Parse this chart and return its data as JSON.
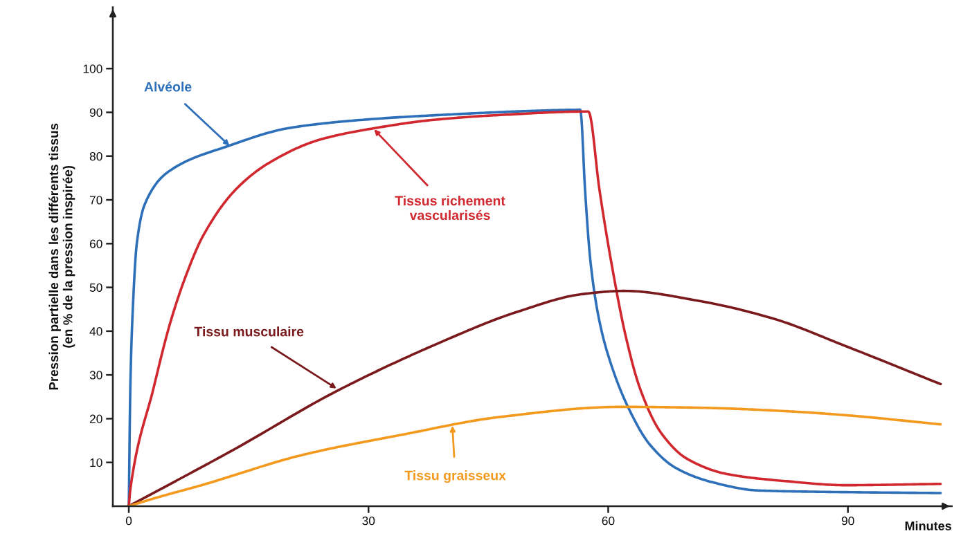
{
  "chart_data": {
    "type": "line",
    "xlabel": "Minutes",
    "ylabel": "Pression partielle dans les différents tissus\n(en % de la pression inspirée)",
    "xlim": [
      -2,
      103
    ],
    "ylim": [
      0,
      114
    ],
    "xticks": [
      0,
      30,
      60,
      90
    ],
    "yticks": [
      10,
      20,
      30,
      40,
      50,
      60,
      70,
      80,
      90,
      100
    ],
    "grid": false,
    "legend": false,
    "marker": "none",
    "line_style": "solid",
    "series": [
      {
        "color": "#2e6fba",
        "x": [
          0,
          0.2,
          0.5,
          1,
          2,
          5,
          12.6,
          20,
          30,
          40,
          50,
          56.5,
          56.6,
          57.1,
          57.8,
          58.9,
          60.4,
          62.6,
          65.2,
          68.5,
          73.2,
          78.7,
          86,
          101.6
        ],
        "values": [
          0,
          28,
          45,
          60,
          69,
          76.5,
          82.4,
          86.4,
          88.4,
          89.5,
          90.3,
          90.6,
          89.5,
          72.4,
          55.6,
          42.3,
          32.2,
          22.2,
          14.1,
          8.7,
          5.4,
          3.6,
          3.3,
          3.0
        ]
      },
      {
        "color": "#d0282e",
        "x": [
          0,
          0.2,
          3.1,
          5.2,
          7.3,
          9.3,
          13.4,
          17.5,
          23.8,
          30.8,
          38.2,
          46.5,
          57.5,
          57.6,
          58.9,
          60.4,
          62.2,
          64.0,
          66.6,
          69.9,
          75,
          82.4,
          89.7,
          101.6
        ],
        "values": [
          0,
          4,
          27,
          42,
          53.4,
          61.8,
          72.4,
          78.4,
          83.7,
          86.4,
          88.3,
          89.4,
          90.2,
          90,
          72.4,
          55.6,
          38.8,
          26.8,
          16.8,
          10.8,
          7.3,
          5.7,
          4.8,
          5.1
        ]
      },
      {
        "color": "#7b1a1c",
        "x": [
          0,
          13.4,
          25.8,
          38.2,
          48.6,
          56.9,
          62,
          71.4,
          80.6,
          89.7,
          101.6
        ],
        "values": [
          0,
          13.2,
          26.1,
          36.8,
          44.4,
          48.5,
          49.2,
          46.9,
          42.9,
          36.6,
          27.9
        ]
      },
      {
        "color": "#f39a1e",
        "x": [
          0,
          3,
          9.3,
          21.7,
          34.1,
          46.5,
          61.6,
          71.4,
          82.4,
          89.7,
          101.6
        ],
        "values": [
          0,
          1.7,
          4.9,
          11.7,
          16.3,
          20.4,
          22.7,
          22.5,
          21.7,
          20.8,
          18.7
        ]
      }
    ],
    "annotations": [
      {
        "text": "Alvéole",
        "x": 12.6,
        "y": 82.4
      },
      {
        "text": "Tissus richement\nvascularisés",
        "x": 30.7,
        "y": 86.1
      },
      {
        "text": "Tissu musculaire",
        "x": 26,
        "y": 26.9
      },
      {
        "text": "Tissu graisseux",
        "x": 40.5,
        "y": 18.4
      }
    ]
  }
}
